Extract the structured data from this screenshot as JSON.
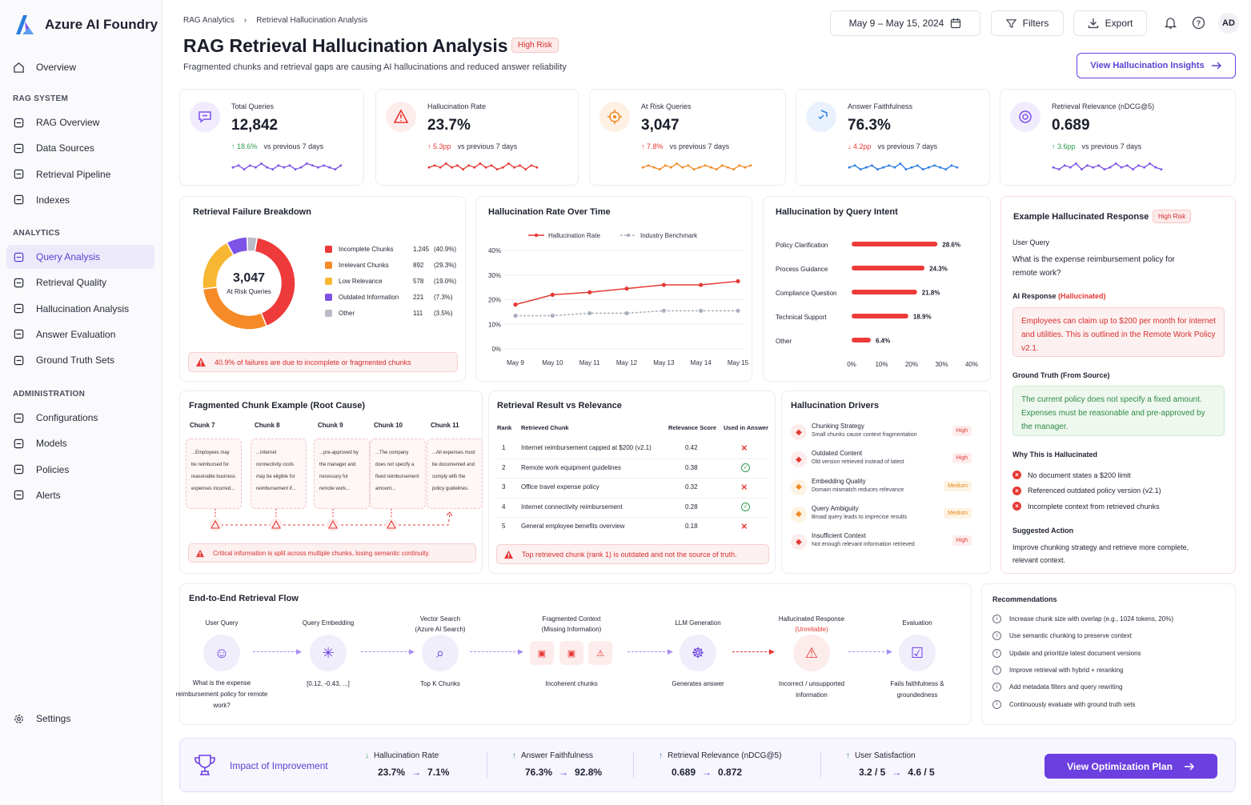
{
  "app": {
    "name": "Azure AI Foundry"
  },
  "sidebar": {
    "overview": "Overview",
    "sections": {
      "rag": "RAG SYSTEM",
      "analytics": "ANALYTICS",
      "admin": "ADMINISTRATION"
    },
    "rag_items": [
      "RAG Overview",
      "Data Sources",
      "Retrieval Pipeline",
      "Indexes"
    ],
    "analytics_items": [
      "Query Analysis",
      "Retrieval Quality",
      "Hallucination Analysis",
      "Answer Evaluation",
      "Ground Truth Sets"
    ],
    "admin_items": [
      "Configurations",
      "Models",
      "Policies",
      "Alerts"
    ],
    "settings": "Settings"
  },
  "header": {
    "breadcrumb": [
      "RAG Analytics",
      "Retrieval Hallucination Analysis"
    ],
    "title": "RAG Retrieval Hallucination Analysis",
    "badge": "High Risk",
    "subtitle": "Fragmented chunks and retrieval gaps are causing AI hallucinations and reduced answer reliability",
    "date_range": "May 9 – May 15, 2024",
    "filters": "Filters",
    "export": "Export",
    "avatar": "AD",
    "insights_button": "View Hallucination Insights"
  },
  "colors": {
    "accent": "#6b3fe0",
    "danger": "#e53935",
    "success": "#2e9b4b",
    "orange": "#f08a24",
    "amber": "#f7b733",
    "purple": "#7d52e6",
    "blue": "#2b7de0"
  },
  "kpis": [
    {
      "label": "Total Queries",
      "value": "12,842",
      "change": "18.6%",
      "dir": "up",
      "good": true,
      "vs": "vs previous 7 days",
      "icon": "chat-icon",
      "color": "#7d52e6",
      "spark": [
        5,
        6,
        4,
        6,
        5,
        7,
        5,
        4,
        6,
        5,
        6,
        4,
        5,
        7,
        6,
        5,
        6,
        5,
        4,
        6
      ]
    },
    {
      "label": "Hallucination Rate",
      "value": "23.7%",
      "change": "5.3pp",
      "dir": "up",
      "good": false,
      "vs": "vs previous 7 days",
      "icon": "warning-icon",
      "color": "#e53935",
      "spark": [
        5,
        6,
        5,
        7,
        5,
        6,
        4,
        6,
        5,
        7,
        5,
        6,
        4,
        5,
        7,
        5,
        6,
        4,
        6,
        5
      ]
    },
    {
      "label": "At Risk Queries",
      "value": "3,047",
      "change": "7.8%",
      "dir": "up",
      "good": false,
      "vs": "vs previous 7 days",
      "icon": "target-icon",
      "color": "#f08a24",
      "spark": [
        5,
        6,
        5,
        4,
        6,
        5,
        7,
        5,
        6,
        4,
        5,
        6,
        5,
        4,
        6,
        5,
        4,
        6,
        5,
        6
      ]
    },
    {
      "label": "Answer Faithfulness",
      "value": "76.3%",
      "change": "4.2pp",
      "dir": "down",
      "good": false,
      "vs": "vs previous 7 days",
      "icon": "shield-icon",
      "color": "#2b7de0",
      "spark": [
        5,
        6,
        4,
        5,
        6,
        4,
        5,
        6,
        5,
        7,
        4,
        5,
        6,
        4,
        5,
        6,
        5,
        4,
        6,
        5
      ]
    },
    {
      "label": "Retrieval Relevance (nDCG@5)",
      "value": "0.689",
      "change": "3.6pp",
      "dir": "up",
      "good": true,
      "vs": "vs previous 7 days",
      "icon": "relevance-icon",
      "color": "#7d52e6",
      "spark": [
        5,
        4,
        6,
        5,
        7,
        4,
        6,
        5,
        6,
        4,
        5,
        7,
        5,
        6,
        4,
        6,
        5,
        7,
        5,
        4
      ]
    }
  ],
  "failure_breakdown": {
    "title": "Retrieval Failure Breakdown",
    "center_value": "3,047",
    "center_label": "At Risk Queries",
    "items": [
      {
        "label": "Incomplete Chunks",
        "count": "1,245",
        "pct": "(40.9%)",
        "value": 40.9,
        "color": "#ee3a3a"
      },
      {
        "label": "Irrelevant Chunks",
        "count": "892",
        "pct": "(29.3%)",
        "value": 29.3,
        "color": "#f58a27"
      },
      {
        "label": "Low Relevance",
        "count": "578",
        "pct": "(19.0%)",
        "value": 19.0,
        "color": "#f7b733"
      },
      {
        "label": "Outdated Information",
        "count": "221",
        "pct": "(7.3%)",
        "value": 7.3,
        "color": "#7d52e6"
      },
      {
        "label": "Other",
        "count": "111",
        "pct": "(3.5%)",
        "value": 3.5,
        "color": "#b9bcc6"
      }
    ],
    "alert": "40.9% of failures are due to incomplete or fragmented chunks"
  },
  "chart_data": [
    {
      "type": "line",
      "title": "Hallucination Rate Over Time",
      "x": [
        "May 9",
        "May 10",
        "May 11",
        "May 12",
        "May 13",
        "May 14",
        "May 15"
      ],
      "series": [
        {
          "name": "Hallucination Rate",
          "values": [
            18,
            22,
            23,
            24.5,
            26,
            26,
            27.5
          ],
          "color": "#e53935"
        },
        {
          "name": "Industry Benchmark",
          "values": [
            13.5,
            13.5,
            14.5,
            14.5,
            15.5,
            15.5,
            15.5
          ],
          "color": "#aab0bd"
        }
      ],
      "ylim": [
        0,
        40
      ],
      "yticks": [
        "0%",
        "10%",
        "20%",
        "30%",
        "40%"
      ]
    },
    {
      "type": "bar",
      "title": "Hallucination by Query Intent",
      "categories": [
        "Policy Clarification",
        "Process Guidance",
        "Compliance Question",
        "Technical Support",
        "Other"
      ],
      "values": [
        28.6,
        24.3,
        21.8,
        18.9,
        6.4
      ],
      "labels": [
        "28.6%",
        "24.3%",
        "21.8%",
        "18.9%",
        "6.4%"
      ],
      "xlim": [
        0,
        40
      ],
      "xticks": [
        "0%",
        "10%",
        "20%",
        "30%",
        "40%"
      ]
    }
  ],
  "example": {
    "title": "Example Hallucinated Response",
    "badge": "High Risk",
    "user_query_label": "User Query",
    "user_query": "What is the expense reimbursement policy for remote work?",
    "ai_label": "AI Response",
    "ai_tag": "(Hallucinated)",
    "ai_text": "Employees can claim up to $200 per month for internet and utilities. This is outlined in the Remote Work Policy v2.1.",
    "gt_label": "Ground Truth (From Source)",
    "gt_text": "The current policy does not specify a fixed amount. Expenses must be reasonable and pre-approved by the manager.",
    "why_label": "Why This is Hallucinated",
    "why": [
      "No document states a $200 limit",
      "Referenced outdated policy version (v2.1)",
      "Incomplete context from retrieved chunks"
    ],
    "action_label": "Suggested Action",
    "action": "Improve chunking strategy and retrieve more complete, relevant context."
  },
  "fragmented": {
    "title": "Fragmented Chunk Example (Root Cause)",
    "chunks": [
      {
        "name": "Chunk 7",
        "text": "...Employees may be reimbursed for reasonable business expenses incurred..."
      },
      {
        "name": "Chunk 8",
        "text": "...Internet connectivity costs may be eligible for reimbursement if..."
      },
      {
        "name": "Chunk 9",
        "text": "...pre-approved by the manager and necessary for remote work..."
      },
      {
        "name": "Chunk 10",
        "text": "...The company does not specify a fixed reimbursement amount..."
      },
      {
        "name": "Chunk 11",
        "text": "...All expenses must be documented and comply with the policy guidelines."
      }
    ],
    "alert": "Critical information is split across multiple chunks, losing semantic continuity."
  },
  "retrieval": {
    "title": "Retrieval Result vs Relevance",
    "headers": [
      "Rank",
      "Retrieved Chunk",
      "Relevance Score",
      "Used in Answer"
    ],
    "rows": [
      {
        "rank": "1",
        "chunk": "Internet reimbursement capped at $200 (v2.1)",
        "score": "0.42",
        "used": false
      },
      {
        "rank": "2",
        "chunk": "Remote work equipment guidelines",
        "score": "0.38",
        "used": true
      },
      {
        "rank": "3",
        "chunk": "Office travel expense policy",
        "score": "0.32",
        "used": false
      },
      {
        "rank": "4",
        "chunk": "Internet connectivity reimbursement",
        "score": "0.28",
        "used": true
      },
      {
        "rank": "5",
        "chunk": "General employee benefits overview",
        "score": "0.18",
        "used": false
      }
    ],
    "alert": "Top retrieved chunk (rank 1) is outdated and not the source of truth."
  },
  "drivers": {
    "title": "Hallucination Drivers",
    "items": [
      {
        "name": "Chunking Strategy",
        "desc": "Small chunks cause context fragmentation",
        "level": "High"
      },
      {
        "name": "Outdated Content",
        "desc": "Old version retrieved instead of latest",
        "level": "High"
      },
      {
        "name": "Embedding Quality",
        "desc": "Domain mismatch reduces relevance",
        "level": "Medium"
      },
      {
        "name": "Query Ambiguity",
        "desc": "Broad query leads to imprecise results",
        "level": "Medium"
      },
      {
        "name": "Insufficient Context",
        "desc": "Not enough relevant information retrieved",
        "level": "High"
      }
    ]
  },
  "flow": {
    "title": "End-to-End Retrieval Flow",
    "steps": [
      {
        "title": "User Query",
        "title2": "",
        "desc": "What is the expense reimbursement policy for remote work?"
      },
      {
        "title": "Query Embedding",
        "title2": "",
        "desc": "[0.12, -0.43, ...]"
      },
      {
        "title": "Vector Search",
        "title2": "(Azure AI Search)",
        "desc": "Top K Chunks"
      },
      {
        "title": "Fragmented Context",
        "title2": "(Missing Information)",
        "desc": "Incoherent chunks"
      },
      {
        "title": "LLM Generation",
        "title2": "",
        "desc": "Generates answer"
      },
      {
        "title": "Hallucinated Response",
        "title2": "(Unreliable)",
        "desc": "Incorrect / unsupported information"
      },
      {
        "title": "Evaluation",
        "title2": "",
        "desc": "Fails faithfulness & groundedness"
      }
    ]
  },
  "recommendations": {
    "title": "Recommendations",
    "items": [
      "Increase chunk size with overlap (e.g., 1024 tokens, 20%)",
      "Use semantic chunking to preserve context",
      "Update and prioritize latest document versions",
      "Improve retrieval with hybrid + reranking",
      "Add metadata filters and query rewriting",
      "Continuously evaluate with ground truth sets"
    ]
  },
  "impact": {
    "title": "Impact of Improvement",
    "metrics": [
      {
        "label": "Hallucination Rate",
        "from": "23.7%",
        "to": "7.1%",
        "dir": "down"
      },
      {
        "label": "Answer Faithfulness",
        "from": "76.3%",
        "to": "92.8%",
        "dir": "up"
      },
      {
        "label": "Retrieval Relevance (nDCG@5)",
        "from": "0.689",
        "to": "0.872",
        "dir": "up"
      },
      {
        "label": "User Satisfaction",
        "from": "3.2 / 5",
        "to": "4.6 / 5",
        "dir": "up"
      }
    ],
    "button": "View Optimization Plan"
  }
}
